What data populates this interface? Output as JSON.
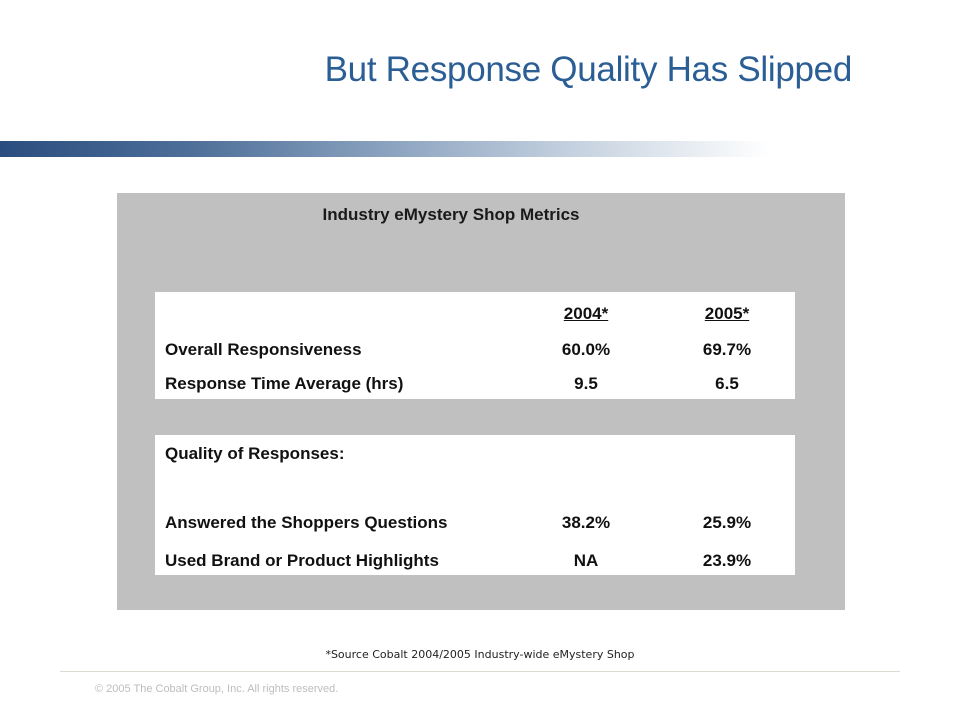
{
  "slide": {
    "title": "But Response Quality Has Slipped",
    "panel_title": "Industry eMystery Shop Metrics",
    "table1": {
      "columns": [
        "2004*",
        "2005*"
      ],
      "rows": [
        {
          "label": "Overall Responsiveness",
          "v2004": "60.0%",
          "v2005": "69.7%"
        },
        {
          "label": "Response Time Average (hrs)",
          "v2004": "9.5",
          "v2005": "6.5"
        }
      ]
    },
    "table2": {
      "heading": "Quality of Responses:",
      "rows": [
        {
          "label": "Answered the Shoppers Questions",
          "v2004": "38.2%",
          "v2005": "25.9%"
        },
        {
          "label": "Used Brand or Product Highlights",
          "v2004": "NA",
          "v2005": "23.9%"
        }
      ]
    },
    "source_note": "*Source Cobalt 2004/2005 Industry-wide eMystery Shop",
    "copyright": "© 2005 The Cobalt Group, Inc. All rights reserved."
  },
  "colors": {
    "title": "#2b5e95",
    "panel": "#c0c0c0",
    "bar_start": "#2a4d7f"
  }
}
